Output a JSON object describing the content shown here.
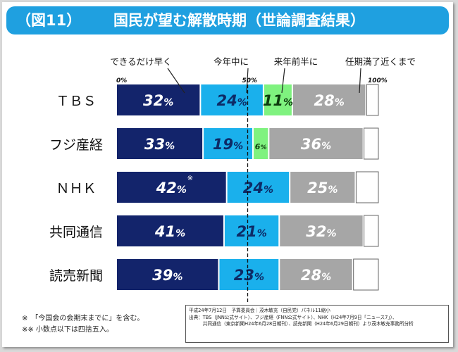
{
  "title": {
    "figure_no": "（図11）",
    "text": "国民が望む解散時期（世論調査結果）"
  },
  "colors": {
    "title_bg": "#1fa0e0",
    "early": "#13246b",
    "this_year": "#1ab0ec",
    "first_half_next_year": "#7ff27f",
    "before_term_end": "#a6a6a6",
    "other": "#ffffff"
  },
  "chart_data": {
    "type": "bar",
    "orientation": "horizontal",
    "stacked": true,
    "xlim": [
      0,
      100
    ],
    "tick_labels": [
      "0%",
      "50%",
      "100%"
    ],
    "reference_line": 50,
    "categories": [
      "ＴＢＳ",
      "フジ産経",
      "ＮＨＫ",
      "共同通信",
      "読売新聞"
    ],
    "series": [
      {
        "name": "できるだけ早く",
        "color": "#13246b",
        "values": [
          32,
          33,
          42,
          41,
          39
        ],
        "labels": [
          "32%",
          "33%",
          "42%",
          "41%",
          "39%"
        ]
      },
      {
        "name": "今年中に",
        "color": "#1ab0ec",
        "values": [
          24,
          19,
          24,
          21,
          23
        ],
        "labels": [
          "24%",
          "19%",
          "24%",
          "21%",
          "23%"
        ]
      },
      {
        "name": "来年前半に",
        "color": "#7ff27f",
        "values": [
          11,
          6,
          0,
          0,
          0
        ],
        "labels": [
          "11%",
          "6%",
          "",
          "",
          ""
        ]
      },
      {
        "name": "任期満了近くまで",
        "color": "#a6a6a6",
        "values": [
          28,
          36,
          25,
          32,
          28
        ],
        "labels": [
          "28%",
          "36%",
          "25%",
          "32%",
          "28%"
        ]
      },
      {
        "name": "",
        "color": "#ffffff",
        "values": [
          5,
          6,
          9,
          6,
          10
        ],
        "labels": [
          "",
          "",
          "",
          "",
          ""
        ]
      }
    ],
    "annotation": {
      "category_index": 2,
      "text": "※"
    }
  },
  "footnotes": [
    "※　「今国会の会期末までに」を含む。",
    "※※ 小数点以下は四捨五入。"
  ],
  "source": [
    "平成24年7月12日　予算委員会｜茂木敏充（自民党）パネル11縮小",
    "出典：TBS（JNN公式サイト）、フジ産経（FNN公式サイト）、NHK（H24年7月9日「ニュース7」）、",
    "　　　共同通信（東京新聞H24年6月28日朝刊）、読売新聞（H24年6月29日朝刊）より茂木敏充事務所分析"
  ]
}
